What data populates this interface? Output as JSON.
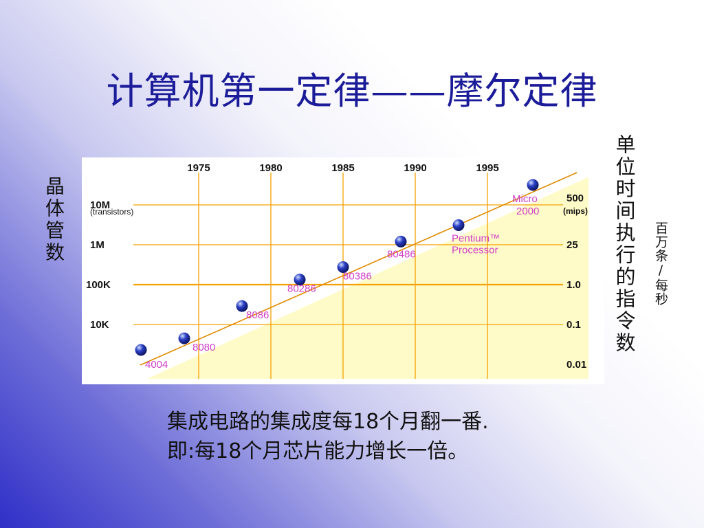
{
  "slide": {
    "title": "计算机第一定律——摩尔定律",
    "left_label": "晶体管数",
    "right_label": "单位时间执行的指令数",
    "unit_label": "百万条/每秒",
    "caption_line1": "集成电路的集成度每18个月翻一番.",
    "caption_line2": "即:每18个月芯片能力增长一倍。"
  },
  "colors": {
    "title": "#1c1c9a",
    "grid": "#f5a000",
    "trend": "#e08a00",
    "shade": "#fffbc8",
    "marker": "#2b3fc4",
    "label": "#d040c8"
  },
  "chart_data": {
    "type": "scatter",
    "x_axis": {
      "ticks": [
        "1975",
        "1980",
        "1985",
        "1990",
        "1995"
      ],
      "ticks_values": [
        1975,
        1980,
        1985,
        1990,
        1995
      ]
    },
    "y_left": {
      "label_top": "10M",
      "label_top_sub": "(transistors)",
      "ticks": [
        "10M",
        "1M",
        "100K",
        "10K"
      ],
      "tick_values": [
        10000000,
        1000000,
        100000,
        10000
      ]
    },
    "y_right": {
      "ticks": [
        "500",
        "25",
        "1.0",
        "0.1",
        "0.01"
      ],
      "top_sub": "(mips)",
      "tick_values": [
        500,
        25,
        1.0,
        0.1,
        0.01
      ]
    },
    "points": [
      {
        "label": "4004",
        "x": 1971,
        "y": 2300
      },
      {
        "label": "8080",
        "x": 1974,
        "y": 4500
      },
      {
        "label": "8086",
        "x": 1978,
        "y": 29000
      },
      {
        "label": "80286",
        "x": 1982,
        "y": 134000
      },
      {
        "label": "80386",
        "x": 1985,
        "y": 275000
      },
      {
        "label": "80486",
        "x": 1989,
        "y": 1200000
      },
      {
        "label": "Pentium™ Processor",
        "x": 1993,
        "y": 3100000
      },
      {
        "label": "Micro 2000",
        "x": 2000,
        "y": 40000000
      }
    ],
    "trend_line": {
      "from_x": 1970,
      "to_x": 2002
    },
    "grid": true
  }
}
